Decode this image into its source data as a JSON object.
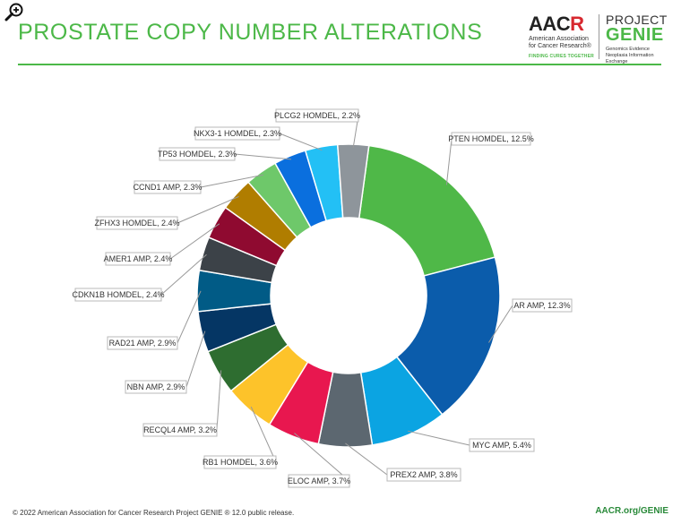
{
  "header": {
    "title": "PROSTATE COPY NUMBER ALTERATIONS",
    "aacr_logo": "AAC-R",
    "aacr_logo_main": "AAC",
    "aacr_logo_accent": "R",
    "aacr_subtitle": "American Association for Cancer Research®",
    "aacr_tagline": "FINDING CURES TOGETHER",
    "project_label": "PROJECT",
    "genie_label": "GENIE",
    "genie_subtitle": "Genomics Evidence Neoplasia Information Exchange"
  },
  "footer": {
    "copyright": "© 2022 American Association for Cancer Research Project GENIE ® 12.0 public release.",
    "url": "AACR.org/GENIE"
  },
  "icons": {
    "zoom": "zoom-in-icon"
  },
  "colors": {
    "brand_green": "#4cb848"
  },
  "chart_data": {
    "type": "pie",
    "donut": true,
    "series": [
      {
        "name": "PTEN HOMDEL",
        "value": 12.5,
        "label": "PTEN HOMDEL, 12.5%",
        "color": "#4fb848"
      },
      {
        "name": "AR AMP",
        "value": 12.3,
        "label": "AR AMP, 12.3%",
        "color": "#0b5cab"
      },
      {
        "name": "MYC AMP",
        "value": 5.4,
        "label": "MYC AMP, 5.4%",
        "color": "#0ba4e2"
      },
      {
        "name": "PREX2 AMP",
        "value": 3.8,
        "label": "PREX2 AMP, 3.8%",
        "color": "#5c6770"
      },
      {
        "name": "ELOC AMP",
        "value": 3.7,
        "label": "ELOC AMP, 3.7%",
        "color": "#e8174f"
      },
      {
        "name": "RB1 HOMDEL",
        "value": 3.6,
        "label": "RB1 HOMDEL, 3.6%",
        "color": "#fdc32a"
      },
      {
        "name": "RECQL4 AMP",
        "value": 3.2,
        "label": "RECQL4 AMP, 3.2%",
        "color": "#2e6d30"
      },
      {
        "name": "NBN AMP",
        "value": 2.9,
        "label": "NBN AMP, 2.9%",
        "color": "#053664"
      },
      {
        "name": "RAD21 AMP",
        "value": 2.9,
        "label": "RAD21 AMP, 2.9%",
        "color": "#015b86"
      },
      {
        "name": "CDKN1B HOMDEL",
        "value": 2.4,
        "label": "CDKN1B HOMDEL, 2.4%",
        "color": "#3c4248"
      },
      {
        "name": "AMER1 AMP",
        "value": 2.4,
        "label": "AMER1 AMP, 2.4%",
        "color": "#8f0a30"
      },
      {
        "name": "ZFHX3 HOMDEL",
        "value": 2.4,
        "label": "ZFHX3 HOMDEL, 2.4%",
        "color": "#b07d00"
      },
      {
        "name": "CCND1 AMP",
        "value": 2.3,
        "label": "CCND1 AMP, 2.3%",
        "color": "#6ec86a"
      },
      {
        "name": "TP53 HOMDEL",
        "value": 2.3,
        "label": "TP53 HOMDEL, 2.3%",
        "color": "#0a6fde"
      },
      {
        "name": "NKX3-1 HOMDEL",
        "value": 2.3,
        "label": "NKX3-1 HOMDEL, 2.3%",
        "color": "#23c0f5"
      },
      {
        "name": "PLCG2 HOMDEL",
        "value": 2.2,
        "label": "PLCG2 HOMDEL, 2.2%",
        "color": "#8e959b"
      }
    ]
  }
}
